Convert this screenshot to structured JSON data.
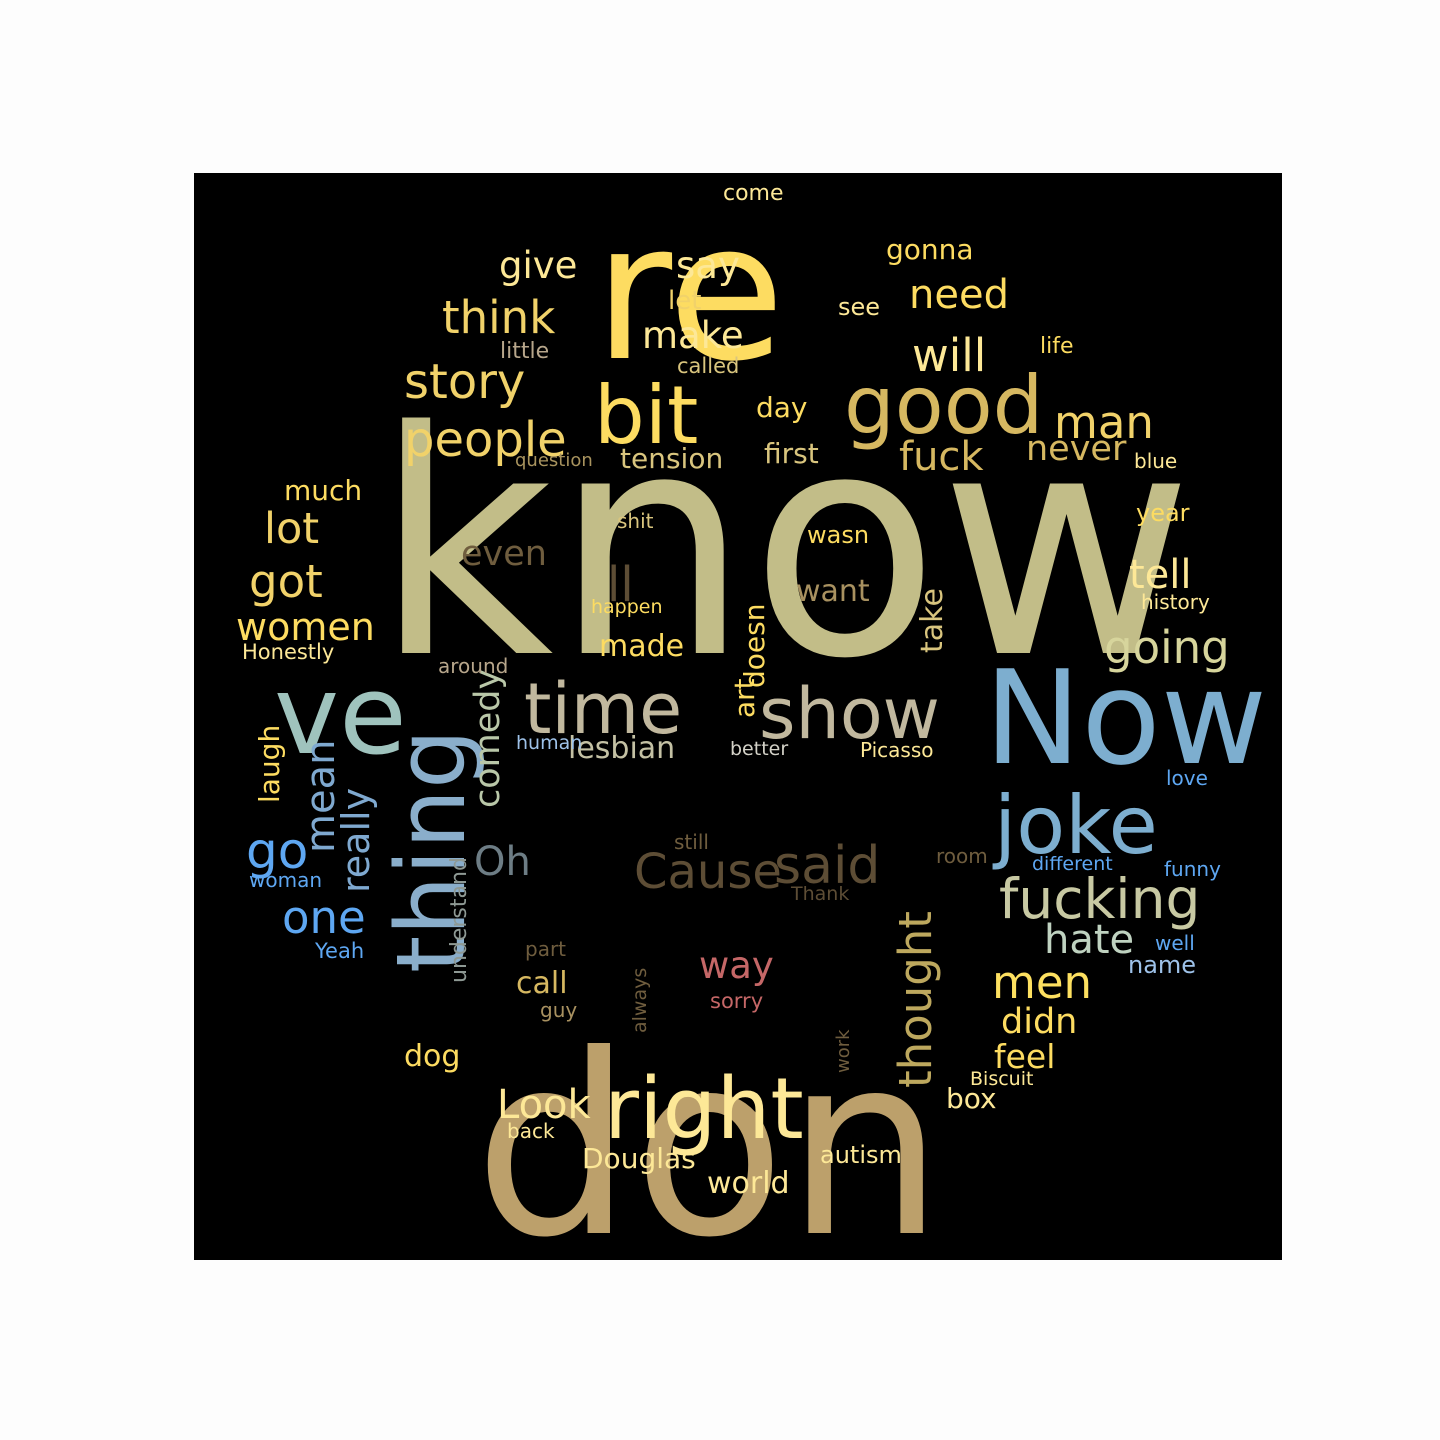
{
  "words": [
    {
      "text": "know",
      "color": "#c2bd88"
    },
    {
      "text": "don",
      "color": "#bca06b"
    },
    {
      "text": "re",
      "color": "#fddc61"
    },
    {
      "text": "Now",
      "color": "#7daecf"
    },
    {
      "text": "ve",
      "color": "#9fc3bd"
    },
    {
      "text": "thing",
      "color": "#8aaecb"
    },
    {
      "text": "right",
      "color": "#fde897"
    },
    {
      "text": "good",
      "color": "#d6b861"
    },
    {
      "text": "bit",
      "color": "#fddc61"
    },
    {
      "text": "joke",
      "color": "#7daecf"
    },
    {
      "text": "time",
      "color": "#c1b89e"
    },
    {
      "text": "show",
      "color": "#c1b89e"
    },
    {
      "text": "said",
      "color": "#5d4d35"
    },
    {
      "text": "fucking",
      "color": "#c8c9a3"
    },
    {
      "text": "Cause",
      "color": "#5d4d35"
    },
    {
      "text": "people",
      "color": "#f1d26a"
    },
    {
      "text": "story",
      "color": "#f1d26a"
    },
    {
      "text": "man",
      "color": "#f1d26a"
    },
    {
      "text": "think",
      "color": "#f1d26a"
    },
    {
      "text": "will",
      "color": "#fde897"
    },
    {
      "text": "men",
      "color": "#fde060"
    },
    {
      "text": "need",
      "color": "#fddc61"
    },
    {
      "text": "make",
      "color": "#fde897"
    },
    {
      "text": "give",
      "color": "#fde897"
    },
    {
      "text": "say",
      "color": "#fde897"
    },
    {
      "text": "got",
      "color": "#f1d26a"
    },
    {
      "text": "lot",
      "color": "#f1d26a"
    },
    {
      "text": "women",
      "color": "#fddc61"
    },
    {
      "text": "tell",
      "color": "#fde897"
    },
    {
      "text": "going",
      "color": "#d7d59c"
    },
    {
      "text": "thought",
      "color": "#bda85e"
    },
    {
      "text": "mean",
      "color": "#7fa9d0"
    },
    {
      "text": "go",
      "color": "#5ea7f2"
    },
    {
      "text": "one",
      "color": "#5ea7f2"
    },
    {
      "text": "really",
      "color": "#7fa9d0"
    },
    {
      "text": "hate",
      "color": "#bfd2c0"
    },
    {
      "text": "fuck",
      "color": "#d6b861"
    },
    {
      "text": "never",
      "color": "#d6b861"
    },
    {
      "text": "Look",
      "color": "#fde897"
    },
    {
      "text": "ll",
      "color": "#5d4d35"
    },
    {
      "text": "even",
      "color": "#6f5d3e"
    },
    {
      "text": "Oh",
      "color": "#6d7d85"
    },
    {
      "text": "comedy",
      "color": "#b9c7a8"
    },
    {
      "text": "way",
      "color": "#c56767"
    },
    {
      "text": "lesbian",
      "color": "#c4c1a4"
    },
    {
      "text": "tension",
      "color": "#d9c57e"
    },
    {
      "text": "first",
      "color": "#d9c57e"
    },
    {
      "text": "day",
      "color": "#fddc61"
    },
    {
      "text": "much",
      "color": "#fddc61"
    },
    {
      "text": "didn",
      "color": "#fddc61"
    },
    {
      "text": "feel",
      "color": "#fddc61"
    },
    {
      "text": "made",
      "color": "#fddc61"
    },
    {
      "text": "take",
      "color": "#d9c57e"
    },
    {
      "text": "want",
      "color": "#a89160"
    },
    {
      "text": "doesn",
      "color": "#fddc61"
    },
    {
      "text": "art",
      "color": "#fddc61"
    },
    {
      "text": "call",
      "color": "#d6b861"
    },
    {
      "text": "Douglas",
      "color": "#fde897"
    },
    {
      "text": "world",
      "color": "#fde897"
    },
    {
      "text": "box",
      "color": "#fde897"
    },
    {
      "text": "autism",
      "color": "#fde897"
    },
    {
      "text": "dog",
      "color": "#fddc61"
    },
    {
      "text": "laugh",
      "color": "#fddc61"
    },
    {
      "text": "name",
      "color": "#9ec2e9"
    },
    {
      "text": "understand",
      "color": "#8e9994"
    },
    {
      "text": "gonna",
      "color": "#fddc61"
    },
    {
      "text": "let",
      "color": "#f1d26a"
    },
    {
      "text": "see",
      "color": "#fde897"
    },
    {
      "text": "little",
      "color": "#b7a68b"
    },
    {
      "text": "called",
      "color": "#d9c57e"
    },
    {
      "text": "life",
      "color": "#fddc61"
    },
    {
      "text": "come",
      "color": "#fde897"
    },
    {
      "text": "question",
      "color": "#a8935e"
    },
    {
      "text": "blue",
      "color": "#fde897"
    },
    {
      "text": "shit",
      "color": "#d9c57e"
    },
    {
      "text": "wasn",
      "color": "#fddc61"
    },
    {
      "text": "year",
      "color": "#fddc61"
    },
    {
      "text": "happen",
      "color": "#fddc61"
    },
    {
      "text": "history",
      "color": "#fde897"
    },
    {
      "text": "Honestly",
      "color": "#fde897"
    },
    {
      "text": "around",
      "color": "#b7a68b"
    },
    {
      "text": "human",
      "color": "#9ec2e9"
    },
    {
      "text": "better",
      "color": "#d4d2c8"
    },
    {
      "text": "Picasso",
      "color": "#fde897"
    },
    {
      "text": "love",
      "color": "#5ea7f2"
    },
    {
      "text": "still",
      "color": "#6f5d3e"
    },
    {
      "text": "room",
      "color": "#6f5d3e"
    },
    {
      "text": "different",
      "color": "#5ea7f2"
    },
    {
      "text": "funny",
      "color": "#5ea7f2"
    },
    {
      "text": "woman",
      "color": "#5ea7f2"
    },
    {
      "text": "Thank",
      "color": "#5d4d35"
    },
    {
      "text": "Yeah",
      "color": "#5ea7f2"
    },
    {
      "text": "part",
      "color": "#6f5d3e"
    },
    {
      "text": "always",
      "color": "#6f5d3e"
    },
    {
      "text": "sorry",
      "color": "#c56767"
    },
    {
      "text": "guy",
      "color": "#a89160"
    },
    {
      "text": "work",
      "color": "#6f5d3e"
    },
    {
      "text": "well",
      "color": "#5ea7f2"
    },
    {
      "text": "Biscuit",
      "color": "#fde897"
    },
    {
      "text": "back",
      "color": "#fde897"
    }
  ]
}
